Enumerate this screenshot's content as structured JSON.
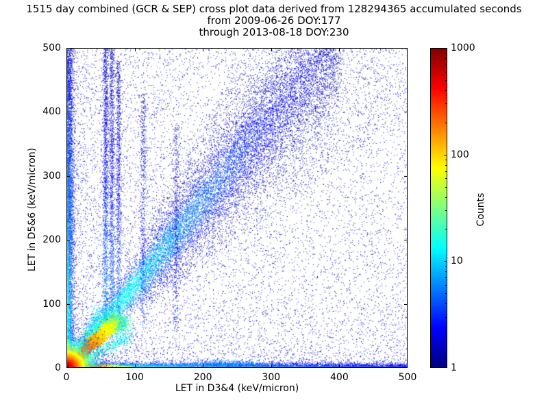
{
  "chart_data": {
    "type": "heatmap",
    "title_lines": [
      "1515 day combined (GCR & SEP) cross plot data derived from 128294365 accumulated seconds",
      "from 2009-06-26 DOY:177",
      "through 2013-08-18 DOY:230"
    ],
    "xlabel": "LET in D3&4 (keV/micron)",
    "ylabel": "LET in D5&6 (keV/micron)",
    "xlim": [
      0,
      500
    ],
    "ylim": [
      0,
      500
    ],
    "xticks": [
      0,
      100,
      200,
      300,
      400,
      500
    ],
    "yticks": [
      0,
      100,
      200,
      300,
      400,
      500
    ],
    "grid": false,
    "colorbar": {
      "label": "Counts",
      "scale": "log",
      "min": 1,
      "max": 1000,
      "ticks": [
        1,
        10,
        100,
        1000
      ],
      "minor_ticks": [
        2,
        3,
        4,
        5,
        6,
        7,
        8,
        9,
        20,
        30,
        40,
        50,
        60,
        70,
        80,
        90,
        200,
        300,
        400,
        500,
        600,
        700,
        800,
        900
      ],
      "colormap": "jet"
    },
    "features": [
      {
        "name": "sparse-noise",
        "kind": "uniform",
        "n": 4500,
        "cmin": 1,
        "cmax": 2
      },
      {
        "name": "left-weighted-noise",
        "kind": "bias_left",
        "n": 3200,
        "pow": 2.2,
        "cmin": 1,
        "cmax": 2
      },
      {
        "name": "bottom-weighted-noise",
        "kind": "bias_bottom",
        "n": 3200,
        "pow": 2.2,
        "cmin": 1,
        "cmax": 3
      },
      {
        "name": "upper-right-diffuse-spray",
        "kind": "spray",
        "n": 4200,
        "x0": 120,
        "x1": 500,
        "m0": 0.8,
        "m1": 1.9,
        "cmin": 1,
        "cmax": 2
      },
      {
        "name": "y-axis-edge-column",
        "kind": "edge_column",
        "n": 5200,
        "sigma": 5,
        "decay": 220,
        "peak": 25
      },
      {
        "name": "left-column-clump",
        "kind": "blob",
        "n": 600,
        "x": 4,
        "y": 270,
        "sx": 4,
        "sy": 55,
        "cmin": 2,
        "cmax": 8
      },
      {
        "name": "x-axis-edge-row",
        "kind": "edge_row",
        "n": 7000,
        "sigma": 4,
        "decay": 250,
        "peak": 30
      },
      {
        "name": "bottom-row-clump",
        "kind": "blob",
        "n": 700,
        "x": 235,
        "y": 5,
        "sx": 30,
        "sy": 4,
        "cmin": 3,
        "cmax": 10
      },
      {
        "name": "main-ion-band",
        "kind": "band",
        "n": 15000,
        "slope": 1.3,
        "xmax": 400,
        "w0": 5,
        "w1": 55,
        "peak": 30
      },
      {
        "name": "vertical-streak-1",
        "kind": "vline",
        "n": 1400,
        "x": 57,
        "sigma": 2,
        "y0": 70,
        "y1": 500,
        "peak": 6
      },
      {
        "name": "vertical-streak-2",
        "kind": "vline",
        "n": 1150,
        "x": 66,
        "sigma": 2,
        "y0": 75,
        "y1": 500,
        "peak": 5
      },
      {
        "name": "vertical-streak-3",
        "kind": "vline",
        "n": 950,
        "x": 76,
        "sigma": 2,
        "y0": 85,
        "y1": 480,
        "peak": 4
      },
      {
        "name": "vertical-streak-4",
        "kind": "vline",
        "n": 600,
        "x": 112,
        "sigma": 2.5,
        "y0": 60,
        "y1": 430,
        "peak": 3
      },
      {
        "name": "vertical-streak-5",
        "kind": "vline",
        "n": 450,
        "x": 160,
        "sigma": 2.5,
        "y0": 55,
        "y1": 380,
        "peak": 2
      },
      {
        "name": "fan-streak-below",
        "kind": "streak",
        "n": 900,
        "x1": 92,
        "y1": 50,
        "w": 2.2,
        "k": 2.2,
        "peak": 60,
        "base": 3
      },
      {
        "name": "fan-streak-above",
        "kind": "streak",
        "n": 900,
        "x1": 52,
        "y1": 90,
        "w": 2.2,
        "k": 2.2,
        "peak": 60,
        "base": 3
      },
      {
        "name": "proton-endpoint-cluster",
        "kind": "blob",
        "n": 2300,
        "x": 71,
        "y": 71,
        "sx": 9,
        "sy": 7,
        "cmin": 6,
        "cmax": 35
      },
      {
        "name": "proton-streak",
        "kind": "streak",
        "n": 3500,
        "x1": 72,
        "y1": 72,
        "w": 1.6,
        "k": 3.0,
        "peak": 700,
        "base": 12
      },
      {
        "name": "x-axis-hot-flare",
        "kind": "axis_flare_x",
        "n": 2500,
        "len": 95,
        "sigma": 1.5,
        "decay": 30,
        "peak": 700
      },
      {
        "name": "y-axis-hot-flare",
        "kind": "axis_flare_y",
        "n": 1500,
        "len": 45,
        "sigma": 1.5,
        "decay": 18,
        "peak": 500
      },
      {
        "name": "origin-hotspot",
        "kind": "hotspot",
        "n": 9000,
        "scale": 14,
        "core": 9,
        "peak": 1100
      }
    ]
  }
}
